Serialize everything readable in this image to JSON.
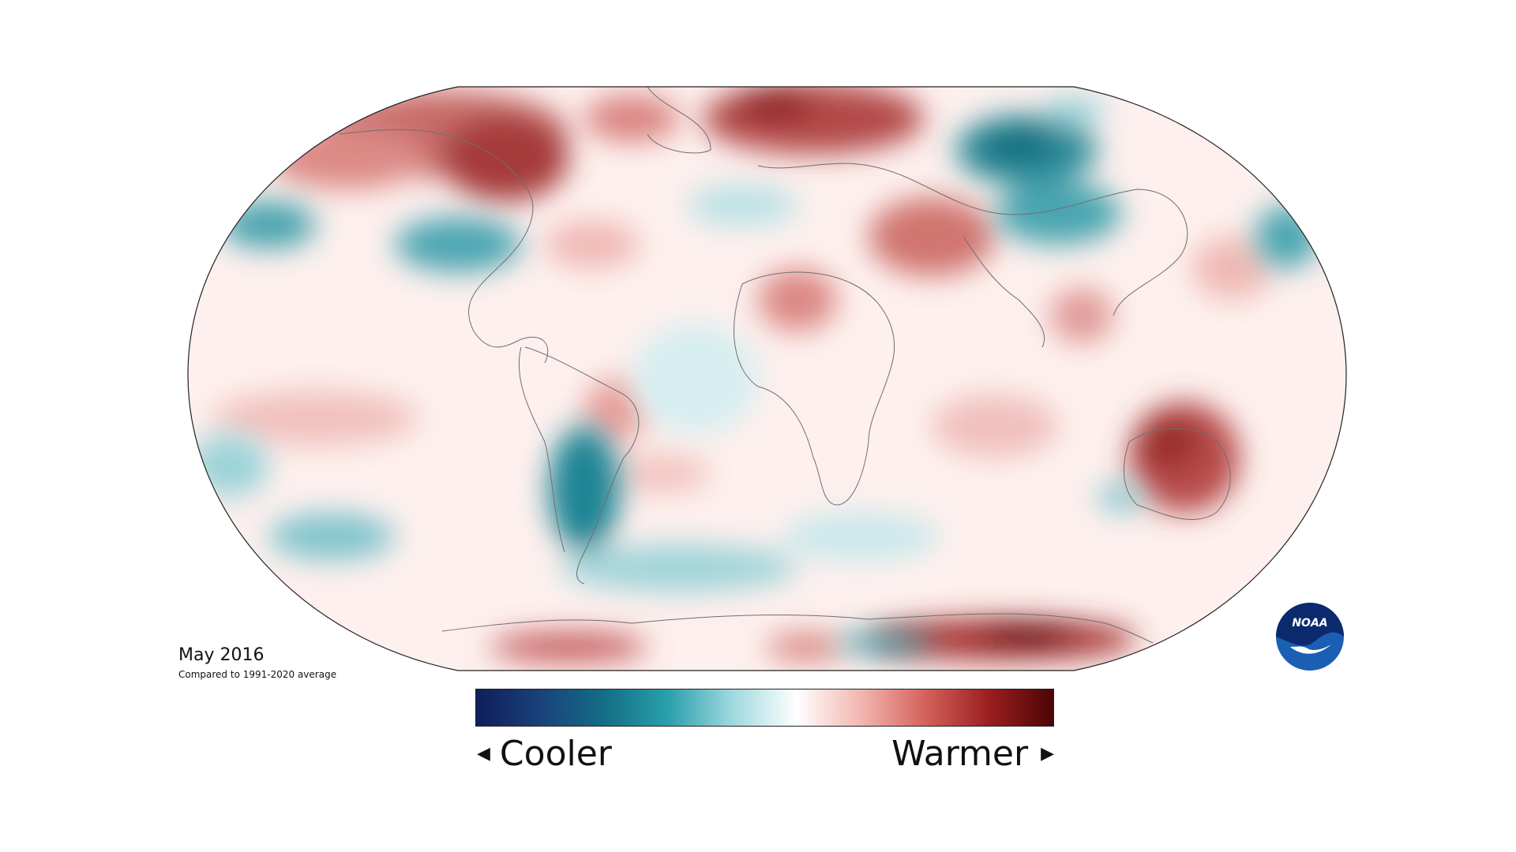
{
  "map": {
    "projection": "robinson",
    "background": "#ffffff",
    "ocean_base": "#fbe9e7",
    "land_outline_color": "#6f6f6f",
    "border_color": "#222222"
  },
  "caption": {
    "title": "May 2016",
    "subtitle": "Compared to 1991-2020 average"
  },
  "legend": {
    "cooler_label": "Cooler",
    "warmer_label": "Warmer",
    "left_arrow_icon": "triangle-left-icon",
    "right_arrow_icon": "triangle-right-icon",
    "gradient_colors": [
      "#0f1e5a",
      "#19427a",
      "#136e86",
      "#2aa0ad",
      "#9fd9df",
      "#ffffff",
      "#f3b6b0",
      "#d4625b",
      "#9a1e1e",
      "#4d0505"
    ]
  },
  "logo": {
    "text": "NOAA",
    "icon": "noaa-logo-icon",
    "primary_color": "#1a5fb4",
    "dark_color": "#0b2a6e"
  }
}
